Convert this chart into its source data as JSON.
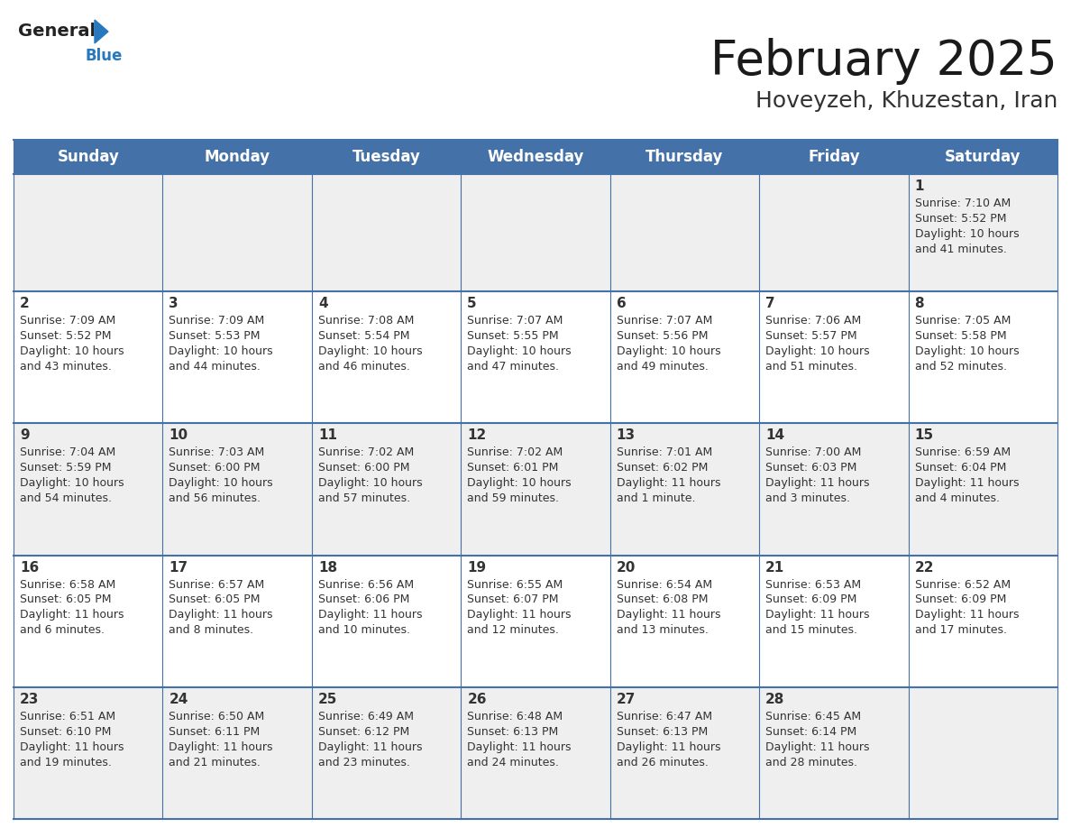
{
  "title": "February 2025",
  "subtitle": "Hoveyzeh, Khuzestan, Iran",
  "header_bg": "#4472a8",
  "header_text_color": "#ffffff",
  "weekdays": [
    "Sunday",
    "Monday",
    "Tuesday",
    "Wednesday",
    "Thursday",
    "Friday",
    "Saturday"
  ],
  "row_bg_odd": "#efefef",
  "row_bg_even": "#ffffff",
  "cell_border_color": "#4472a8",
  "day_number_color": "#333333",
  "info_text_color": "#333333",
  "logo_general_color": "#222222",
  "logo_blue_color": "#2878be",
  "days": [
    {
      "day": 1,
      "col": 6,
      "row": 0,
      "sunrise": "7:10 AM",
      "sunset": "5:52 PM",
      "daylight": "10 hours and 41 minutes."
    },
    {
      "day": 2,
      "col": 0,
      "row": 1,
      "sunrise": "7:09 AM",
      "sunset": "5:52 PM",
      "daylight": "10 hours and 43 minutes."
    },
    {
      "day": 3,
      "col": 1,
      "row": 1,
      "sunrise": "7:09 AM",
      "sunset": "5:53 PM",
      "daylight": "10 hours and 44 minutes."
    },
    {
      "day": 4,
      "col": 2,
      "row": 1,
      "sunrise": "7:08 AM",
      "sunset": "5:54 PM",
      "daylight": "10 hours and 46 minutes."
    },
    {
      "day": 5,
      "col": 3,
      "row": 1,
      "sunrise": "7:07 AM",
      "sunset": "5:55 PM",
      "daylight": "10 hours and 47 minutes."
    },
    {
      "day": 6,
      "col": 4,
      "row": 1,
      "sunrise": "7:07 AM",
      "sunset": "5:56 PM",
      "daylight": "10 hours and 49 minutes."
    },
    {
      "day": 7,
      "col": 5,
      "row": 1,
      "sunrise": "7:06 AM",
      "sunset": "5:57 PM",
      "daylight": "10 hours and 51 minutes."
    },
    {
      "day": 8,
      "col": 6,
      "row": 1,
      "sunrise": "7:05 AM",
      "sunset": "5:58 PM",
      "daylight": "10 hours and 52 minutes."
    },
    {
      "day": 9,
      "col": 0,
      "row": 2,
      "sunrise": "7:04 AM",
      "sunset": "5:59 PM",
      "daylight": "10 hours and 54 minutes."
    },
    {
      "day": 10,
      "col": 1,
      "row": 2,
      "sunrise": "7:03 AM",
      "sunset": "6:00 PM",
      "daylight": "10 hours and 56 minutes."
    },
    {
      "day": 11,
      "col": 2,
      "row": 2,
      "sunrise": "7:02 AM",
      "sunset": "6:00 PM",
      "daylight": "10 hours and 57 minutes."
    },
    {
      "day": 12,
      "col": 3,
      "row": 2,
      "sunrise": "7:02 AM",
      "sunset": "6:01 PM",
      "daylight": "10 hours and 59 minutes."
    },
    {
      "day": 13,
      "col": 4,
      "row": 2,
      "sunrise": "7:01 AM",
      "sunset": "6:02 PM",
      "daylight": "11 hours and 1 minute."
    },
    {
      "day": 14,
      "col": 5,
      "row": 2,
      "sunrise": "7:00 AM",
      "sunset": "6:03 PM",
      "daylight": "11 hours and 3 minutes."
    },
    {
      "day": 15,
      "col": 6,
      "row": 2,
      "sunrise": "6:59 AM",
      "sunset": "6:04 PM",
      "daylight": "11 hours and 4 minutes."
    },
    {
      "day": 16,
      "col": 0,
      "row": 3,
      "sunrise": "6:58 AM",
      "sunset": "6:05 PM",
      "daylight": "11 hours and 6 minutes."
    },
    {
      "day": 17,
      "col": 1,
      "row": 3,
      "sunrise": "6:57 AM",
      "sunset": "6:05 PM",
      "daylight": "11 hours and 8 minutes."
    },
    {
      "day": 18,
      "col": 2,
      "row": 3,
      "sunrise": "6:56 AM",
      "sunset": "6:06 PM",
      "daylight": "11 hours and 10 minutes."
    },
    {
      "day": 19,
      "col": 3,
      "row": 3,
      "sunrise": "6:55 AM",
      "sunset": "6:07 PM",
      "daylight": "11 hours and 12 minutes."
    },
    {
      "day": 20,
      "col": 4,
      "row": 3,
      "sunrise": "6:54 AM",
      "sunset": "6:08 PM",
      "daylight": "11 hours and 13 minutes."
    },
    {
      "day": 21,
      "col": 5,
      "row": 3,
      "sunrise": "6:53 AM",
      "sunset": "6:09 PM",
      "daylight": "11 hours and 15 minutes."
    },
    {
      "day": 22,
      "col": 6,
      "row": 3,
      "sunrise": "6:52 AM",
      "sunset": "6:09 PM",
      "daylight": "11 hours and 17 minutes."
    },
    {
      "day": 23,
      "col": 0,
      "row": 4,
      "sunrise": "6:51 AM",
      "sunset": "6:10 PM",
      "daylight": "11 hours and 19 minutes."
    },
    {
      "day": 24,
      "col": 1,
      "row": 4,
      "sunrise": "6:50 AM",
      "sunset": "6:11 PM",
      "daylight": "11 hours and 21 minutes."
    },
    {
      "day": 25,
      "col": 2,
      "row": 4,
      "sunrise": "6:49 AM",
      "sunset": "6:12 PM",
      "daylight": "11 hours and 23 minutes."
    },
    {
      "day": 26,
      "col": 3,
      "row": 4,
      "sunrise": "6:48 AM",
      "sunset": "6:13 PM",
      "daylight": "11 hours and 24 minutes."
    },
    {
      "day": 27,
      "col": 4,
      "row": 4,
      "sunrise": "6:47 AM",
      "sunset": "6:13 PM",
      "daylight": "11 hours and 26 minutes."
    },
    {
      "day": 28,
      "col": 5,
      "row": 4,
      "sunrise": "6:45 AM",
      "sunset": "6:14 PM",
      "daylight": "11 hours and 28 minutes."
    }
  ]
}
